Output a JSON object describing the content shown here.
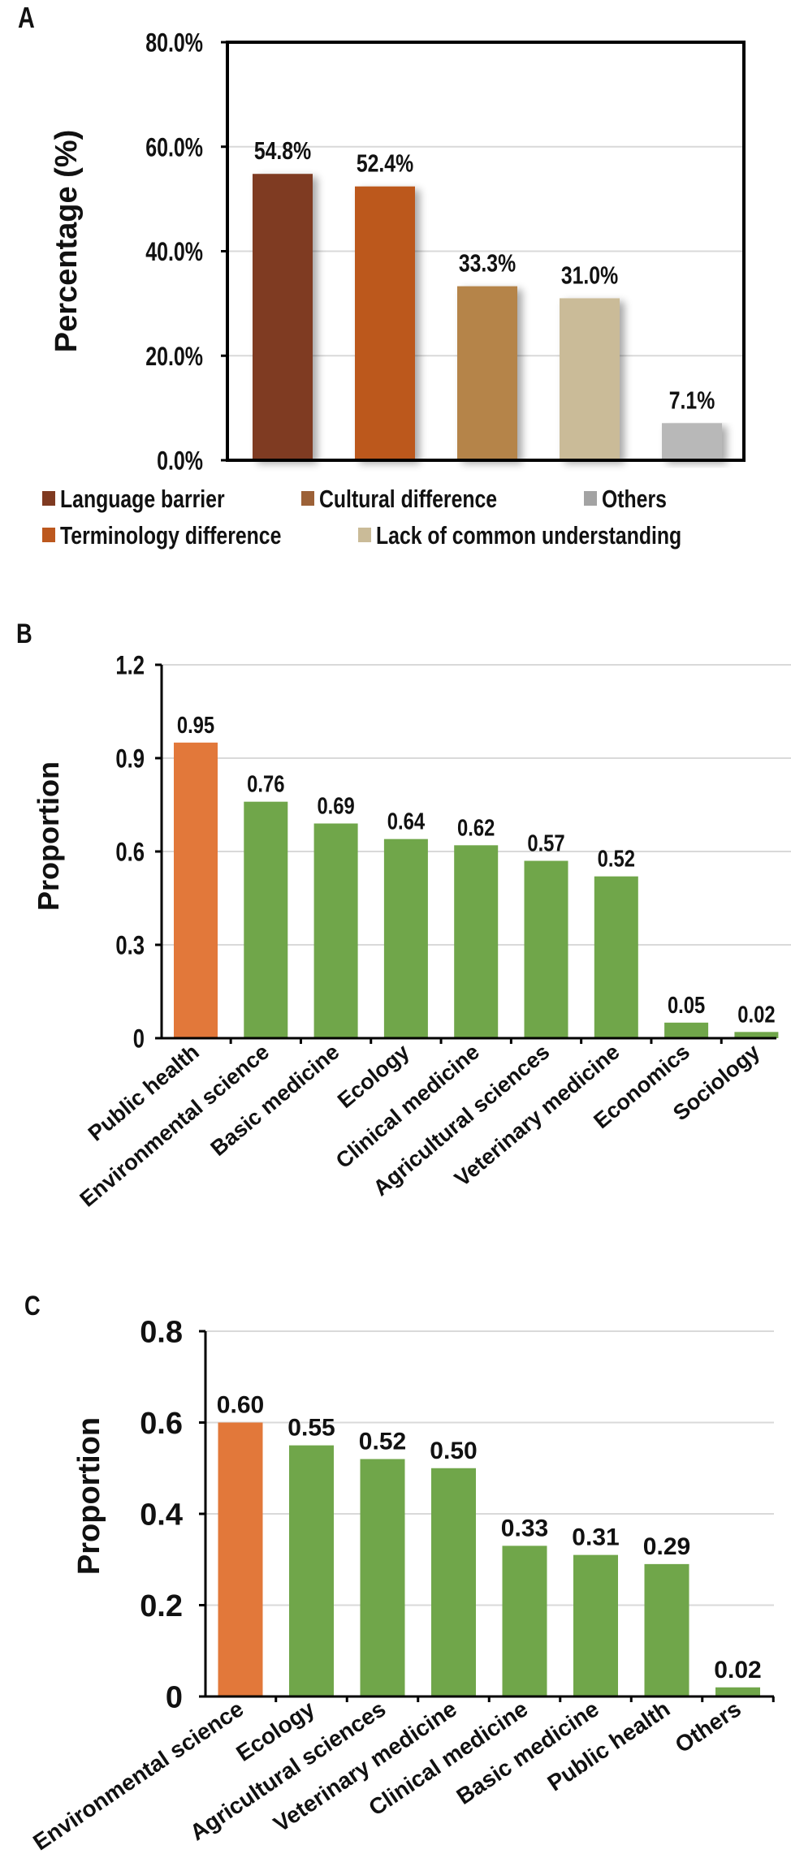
{
  "chart_data": [
    {
      "panel": "A",
      "type": "bar",
      "categories": [
        "Language barrier",
        "Terminology difference",
        "Cultural difference",
        "Lack of common understanding",
        "Others"
      ],
      "values": [
        54.8,
        52.4,
        33.3,
        31.0,
        7.1
      ],
      "value_labels": [
        "54.8%",
        "52.4%",
        "33.3%",
        "31.0%",
        "7.1%"
      ],
      "colors": [
        "#7f3a21",
        "#bc581e",
        "#b5844a",
        "#cabb98",
        "#b8b8b8"
      ],
      "ylabel": "Percentage (%)",
      "ylim": [
        0,
        80
      ],
      "yticks": [
        0,
        20,
        40,
        60,
        80
      ],
      "ytick_labels": [
        "0.0%",
        "20.0%",
        "40.0%",
        "60.0%",
        "80.0%"
      ],
      "grid": true,
      "legend": {
        "placement": "bottom",
        "items": [
          {
            "label": "Language barrier",
            "color": "#7f3a21"
          },
          {
            "label": "Cultural difference",
            "color": "#9c6137"
          },
          {
            "label": "Others",
            "color": "#a3a3a3"
          },
          {
            "label": "Terminology difference",
            "color": "#bc581e"
          },
          {
            "label": "Lack of common understanding",
            "color": "#cabb98"
          }
        ]
      }
    },
    {
      "panel": "B",
      "type": "bar",
      "categories": [
        "Public health",
        "Environmental science",
        "Basic medicine",
        "Ecology",
        "Clinical medicine",
        "Agricultural sciences",
        "Veterinary medicine",
        "Economics",
        "Sociology"
      ],
      "values": [
        0.95,
        0.76,
        0.69,
        0.64,
        0.62,
        0.57,
        0.52,
        0.05,
        0.02
      ],
      "value_labels": [
        "0.95",
        "0.76",
        "0.69",
        "0.64",
        "0.62",
        "0.57",
        "0.52",
        "0.05",
        "0.02"
      ],
      "colors": [
        "#e2783a",
        "#70a64a",
        "#70a64a",
        "#70a64a",
        "#70a64a",
        "#70a64a",
        "#70a64a",
        "#70a64a",
        "#70a64a"
      ],
      "ylabel": "Proportion",
      "ylim": [
        0,
        1.2
      ],
      "yticks": [
        0,
        0.3,
        0.6,
        0.9,
        1.2
      ],
      "ytick_labels": [
        "0",
        "0.3",
        "0.6",
        "0.9",
        "1.2"
      ],
      "grid": true
    },
    {
      "panel": "C",
      "type": "bar",
      "categories": [
        "Environmental science",
        "Ecology",
        "Agricultural sciences",
        "Veterinary medicine",
        "Clinical medicine",
        "Basic medicine",
        "Public health",
        "Others"
      ],
      "values": [
        0.6,
        0.55,
        0.52,
        0.5,
        0.33,
        0.31,
        0.29,
        0.02
      ],
      "value_labels": [
        "0.60",
        "0.55",
        "0.52",
        "0.50",
        "0.33",
        "0.31",
        "0.29",
        "0.02"
      ],
      "colors": [
        "#e2783a",
        "#70a64a",
        "#70a64a",
        "#70a64a",
        "#70a64a",
        "#70a64a",
        "#70a64a",
        "#70a64a"
      ],
      "ylabel": "Proportion",
      "ylim": [
        0,
        0.8
      ],
      "yticks": [
        0,
        0.2,
        0.4,
        0.6,
        0.8
      ],
      "ytick_labels": [
        "0",
        "0.2",
        "0.4",
        "0.6",
        "0.8"
      ],
      "grid": true
    }
  ]
}
